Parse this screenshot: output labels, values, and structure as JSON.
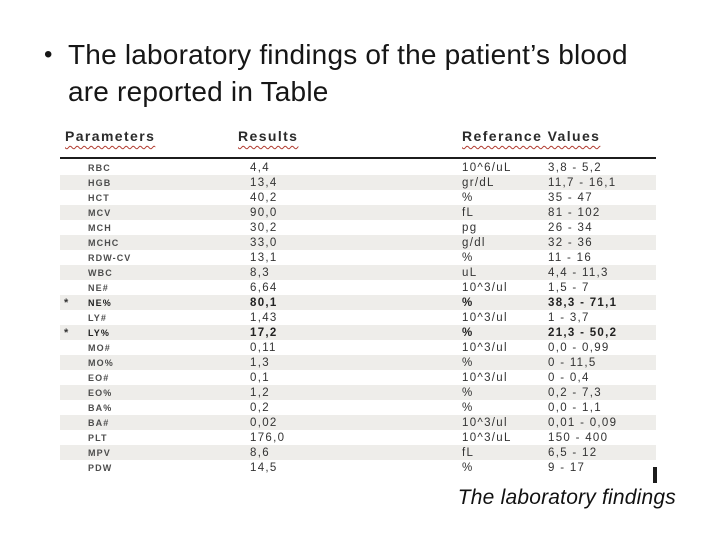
{
  "slide": {
    "bullet": "•",
    "title_lines": {
      "0": "The laboratory findings of the patient’s blood",
      "1": "are reported in Table"
    },
    "caption": "The laboratory findings"
  },
  "table": {
    "headers": {
      "parameters": "Parameters",
      "results": "Results",
      "reference": "Referance Values"
    },
    "rows": [
      {
        "flag": "",
        "param": "RBC",
        "result": "4,4",
        "unit": "10^6/uL",
        "range": "3,8 - 5,2"
      },
      {
        "flag": "",
        "param": "HGB",
        "result": "13,4",
        "unit": "gr/dL",
        "range": "11,7 - 16,1"
      },
      {
        "flag": "",
        "param": "HCT",
        "result": "40,2",
        "unit": "%",
        "range": "35 - 47"
      },
      {
        "flag": "",
        "param": "MCV",
        "result": "90,0",
        "unit": "fL",
        "range": "81 - 102"
      },
      {
        "flag": "",
        "param": "MCH",
        "result": "30,2",
        "unit": "pg",
        "range": "26 - 34"
      },
      {
        "flag": "",
        "param": "MCHC",
        "result": "33,0",
        "unit": "g/dl",
        "range": "32 - 36"
      },
      {
        "flag": "",
        "param": "RDW-CV",
        "result": "13,1",
        "unit": "%",
        "range": "11 - 16"
      },
      {
        "flag": "",
        "param": "WBC",
        "result": "8,3",
        "unit": "uL",
        "range": "4,4 - 11,3"
      },
      {
        "flag": "",
        "param": "NE#",
        "result": "6,64",
        "unit": "10^3/ul",
        "range": "1,5 - 7"
      },
      {
        "flag": "*",
        "param": "NE%",
        "result": "80,1",
        "unit": "%",
        "range": "38,3 - 71,1"
      },
      {
        "flag": "",
        "param": "LY#",
        "result": "1,43",
        "unit": "10^3/ul",
        "range": "1 - 3,7"
      },
      {
        "flag": "*",
        "param": "LY%",
        "result": "17,2",
        "unit": "%",
        "range": "21,3 - 50,2"
      },
      {
        "flag": "",
        "param": "MO#",
        "result": "0,11",
        "unit": "10^3/ul",
        "range": "0,0 - 0,99"
      },
      {
        "flag": "",
        "param": "MO%",
        "result": "1,3",
        "unit": "%",
        "range": "0 - 11,5"
      },
      {
        "flag": "",
        "param": "EO#",
        "result": "0,1",
        "unit": "10^3/ul",
        "range": "0 - 0,4"
      },
      {
        "flag": "",
        "param": "EO%",
        "result": "1,2",
        "unit": "%",
        "range": "0,2 - 7,3"
      },
      {
        "flag": "",
        "param": "BA%",
        "result": "0,2",
        "unit": "%",
        "range": "0,0 - 1,1"
      },
      {
        "flag": "",
        "param": "BA#",
        "result": "0,02",
        "unit": "10^3/ul",
        "range": "0,01 - 0,09"
      },
      {
        "flag": "",
        "param": "PLT",
        "result": "176,0",
        "unit": "10^3/uL",
        "range": "150 - 400"
      },
      {
        "flag": "",
        "param": "MPV",
        "result": "8,6",
        "unit": "fL",
        "range": "6,5 - 12"
      },
      {
        "flag": "",
        "param": "PDW",
        "result": "14,5",
        "unit": "%",
        "range": "9 - 17"
      }
    ]
  },
  "colors": {
    "page_bg": "#ffffff",
    "title_text": "#161616",
    "header_text": "#2b2b2b",
    "body_text": "#333333",
    "param_text": "#4d4d4d",
    "band": "#eeedea",
    "squiggle": "#b03a2e",
    "rule": "#1c1c1c",
    "caption_text": "#111111"
  }
}
